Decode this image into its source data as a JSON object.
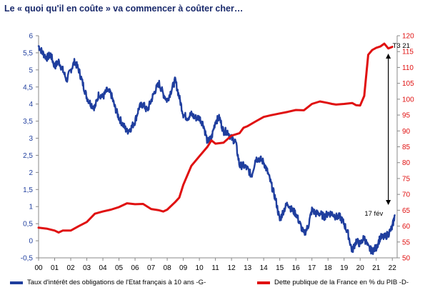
{
  "title": "Le « quoi qu'il en coûte » va commencer à coûter cher…",
  "chart_data": {
    "type": "line",
    "x_ticks": [
      "00",
      "01",
      "02",
      "03",
      "04",
      "05",
      "06",
      "07",
      "08",
      "09",
      "10",
      "11",
      "12",
      "13",
      "14",
      "15",
      "16",
      "17",
      "18",
      "19",
      "20",
      "21",
      "22"
    ],
    "x_range": [
      2000,
      2022.3
    ],
    "y_left": {
      "ticks": [
        "-0,5",
        "0",
        "0,5",
        "1",
        "1,5",
        "2",
        "2,5",
        "3",
        "3,5",
        "4",
        "4,5",
        "5",
        "5,5",
        "6"
      ],
      "range": [
        -0.5,
        6
      ],
      "color": "#1f3e9e"
    },
    "y_right": {
      "ticks": [
        "50",
        "55",
        "60",
        "65",
        "70",
        "75",
        "80",
        "85",
        "90",
        "95",
        "100",
        "105",
        "110",
        "115",
        "120"
      ],
      "range": [
        50,
        120
      ],
      "color": "#e01010"
    },
    "series": [
      {
        "name": "Taux d'intérêt des obligations de l'Etat français à 10 ans -G-",
        "axis": "left",
        "color": "#1f3e9e",
        "points": [
          [
            2000.0,
            5.7
          ],
          [
            2000.25,
            5.5
          ],
          [
            2000.5,
            5.35
          ],
          [
            2000.75,
            5.45
          ],
          [
            2001.0,
            5.1
          ],
          [
            2001.25,
            5.25
          ],
          [
            2001.5,
            5.0
          ],
          [
            2001.75,
            4.7
          ],
          [
            2002.0,
            5.0
          ],
          [
            2002.25,
            5.25
          ],
          [
            2002.5,
            5.0
          ],
          [
            2002.75,
            4.6
          ],
          [
            2003.0,
            4.2
          ],
          [
            2003.25,
            4.0
          ],
          [
            2003.5,
            3.9
          ],
          [
            2003.75,
            4.3
          ],
          [
            2004.0,
            4.2
          ],
          [
            2004.25,
            4.4
          ],
          [
            2004.5,
            4.3
          ],
          [
            2004.75,
            3.9
          ],
          [
            2005.0,
            3.6
          ],
          [
            2005.25,
            3.4
          ],
          [
            2005.5,
            3.2
          ],
          [
            2005.75,
            3.3
          ],
          [
            2006.0,
            3.5
          ],
          [
            2006.25,
            3.9
          ],
          [
            2006.5,
            4.0
          ],
          [
            2006.75,
            3.8
          ],
          [
            2007.0,
            4.1
          ],
          [
            2007.25,
            4.4
          ],
          [
            2007.5,
            4.6
          ],
          [
            2007.75,
            4.3
          ],
          [
            2008.0,
            4.1
          ],
          [
            2008.25,
            4.4
          ],
          [
            2008.5,
            4.7
          ],
          [
            2008.75,
            4.2
          ],
          [
            2009.0,
            3.7
          ],
          [
            2009.25,
            3.6
          ],
          [
            2009.5,
            3.7
          ],
          [
            2009.75,
            3.6
          ],
          [
            2010.0,
            3.6
          ],
          [
            2010.25,
            3.4
          ],
          [
            2010.5,
            2.9
          ],
          [
            2010.75,
            3.0
          ],
          [
            2011.0,
            3.5
          ],
          [
            2011.25,
            3.6
          ],
          [
            2011.5,
            3.2
          ],
          [
            2011.75,
            3.2
          ],
          [
            2012.0,
            3.0
          ],
          [
            2012.25,
            2.9
          ],
          [
            2012.5,
            2.2
          ],
          [
            2012.75,
            2.2
          ],
          [
            2013.0,
            2.1
          ],
          [
            2013.25,
            1.9
          ],
          [
            2013.5,
            2.4
          ],
          [
            2013.75,
            2.4
          ],
          [
            2014.0,
            2.3
          ],
          [
            2014.25,
            2.0
          ],
          [
            2014.5,
            1.6
          ],
          [
            2014.75,
            1.2
          ],
          [
            2015.0,
            0.6
          ],
          [
            2015.25,
            0.9
          ],
          [
            2015.5,
            1.1
          ],
          [
            2015.75,
            0.9
          ],
          [
            2016.0,
            0.8
          ],
          [
            2016.25,
            0.5
          ],
          [
            2016.5,
            0.2
          ],
          [
            2016.75,
            0.4
          ],
          [
            2017.0,
            0.9
          ],
          [
            2017.25,
            0.8
          ],
          [
            2017.5,
            0.8
          ],
          [
            2017.75,
            0.7
          ],
          [
            2018.0,
            0.8
          ],
          [
            2018.25,
            0.8
          ],
          [
            2018.5,
            0.7
          ],
          [
            2018.75,
            0.7
          ],
          [
            2019.0,
            0.5
          ],
          [
            2019.25,
            0.2
          ],
          [
            2019.5,
            -0.3
          ],
          [
            2019.75,
            0.0
          ],
          [
            2020.0,
            -0.1
          ],
          [
            2020.25,
            0.1
          ],
          [
            2020.5,
            -0.2
          ],
          [
            2020.75,
            -0.3
          ],
          [
            2021.0,
            -0.2
          ],
          [
            2021.25,
            0.1
          ],
          [
            2021.5,
            0.1
          ],
          [
            2021.75,
            0.2
          ],
          [
            2022.0,
            0.4
          ],
          [
            2022.15,
            0.75
          ]
        ]
      },
      {
        "name": "Dette publique de la France en % du PIB -D-",
        "axis": "right",
        "color": "#e01010",
        "points": [
          [
            2000.0,
            59.5
          ],
          [
            2000.5,
            59.2
          ],
          [
            2001.0,
            58.6
          ],
          [
            2001.25,
            58.0
          ],
          [
            2001.5,
            58.6
          ],
          [
            2001.75,
            58.6
          ],
          [
            2002.0,
            58.6
          ],
          [
            2002.5,
            60.0
          ],
          [
            2003.0,
            61.3
          ],
          [
            2003.5,
            63.9
          ],
          [
            2004.0,
            64.6
          ],
          [
            2004.5,
            65.2
          ],
          [
            2005.0,
            66.0
          ],
          [
            2005.5,
            67.2
          ],
          [
            2006.0,
            66.9
          ],
          [
            2006.5,
            67.0
          ],
          [
            2007.0,
            65.4
          ],
          [
            2007.5,
            65.0
          ],
          [
            2007.75,
            64.6
          ],
          [
            2008.0,
            65.2
          ],
          [
            2008.5,
            67.6
          ],
          [
            2008.75,
            69.0
          ],
          [
            2009.0,
            73.0
          ],
          [
            2009.5,
            79.0
          ],
          [
            2010.0,
            82.0
          ],
          [
            2010.5,
            85.0
          ],
          [
            2010.75,
            87.0
          ],
          [
            2011.0,
            86.0
          ],
          [
            2011.5,
            86.3
          ],
          [
            2012.0,
            88.5
          ],
          [
            2012.5,
            89.3
          ],
          [
            2012.75,
            91.0
          ],
          [
            2013.0,
            91.5
          ],
          [
            2013.5,
            93.0
          ],
          [
            2014.0,
            94.4
          ],
          [
            2014.5,
            95.0
          ],
          [
            2015.0,
            95.5
          ],
          [
            2015.5,
            96.0
          ],
          [
            2016.0,
            96.6
          ],
          [
            2016.5,
            96.5
          ],
          [
            2017.0,
            98.5
          ],
          [
            2017.5,
            99.3
          ],
          [
            2018.0,
            98.8
          ],
          [
            2018.25,
            98.5
          ],
          [
            2018.5,
            98.3
          ],
          [
            2019.0,
            98.5
          ],
          [
            2019.5,
            98.8
          ],
          [
            2019.75,
            98.1
          ],
          [
            2020.0,
            98.0
          ],
          [
            2020.25,
            101.0
          ],
          [
            2020.5,
            114.0
          ],
          [
            2020.75,
            115.5
          ],
          [
            2021.0,
            116.2
          ],
          [
            2021.25,
            116.6
          ],
          [
            2021.5,
            117.5
          ],
          [
            2021.75,
            116.0
          ],
          [
            2022.0,
            116.5
          ]
        ]
      }
    ],
    "annotations": {
      "top_label": "T3 21",
      "bottom_label": "17 fév"
    },
    "grid": false,
    "legend": "bottom"
  }
}
